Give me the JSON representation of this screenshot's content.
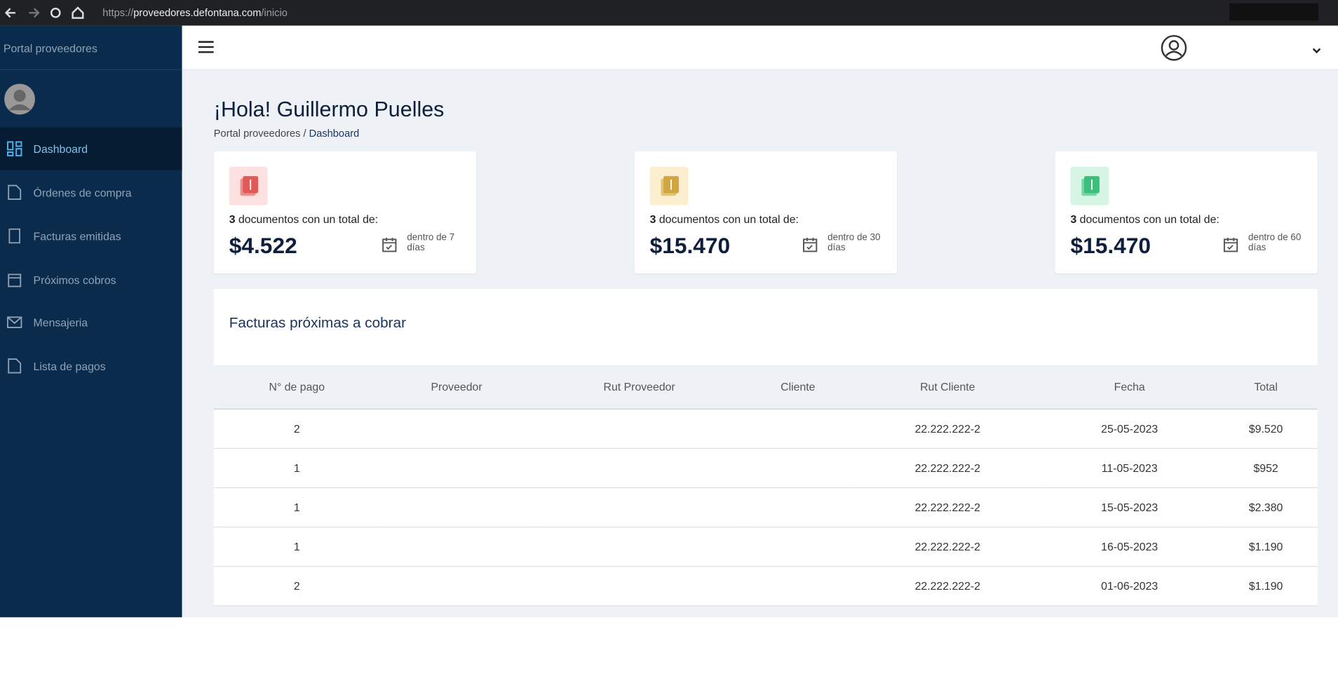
{
  "browser": {
    "url_prefix": "https://",
    "url_host": "proveedores.defontana.com",
    "url_path": "/inicio"
  },
  "sidebar": {
    "brand": "Portal proveedores",
    "menu": [
      "Dashboard",
      "Órdenes de compra",
      "Facturas emitidas",
      "Próximos cobros",
      "Mensajeria",
      "Lista de pagos"
    ]
  },
  "greeting": "¡Hola! Guillermo Puelles",
  "breadcrumb": {
    "root": "Portal proveedores",
    "separator": "/",
    "current": "Dashboard"
  },
  "cards": [
    {
      "count": "3",
      "text": "documentos con un total de:",
      "amount": "$4.522",
      "due": "dentro de 7 días"
    },
    {
      "count": "3",
      "text": "documentos con un total de:",
      "amount": "$15.470",
      "due": "dentro de 30 días"
    },
    {
      "count": "3",
      "text": "documentos con un total de:",
      "amount": "$15.470",
      "due": "dentro de 60 días"
    }
  ],
  "table": {
    "title": "Facturas próximas a cobrar",
    "columns": [
      "N° de pago",
      "Proveedor",
      "Rut Proveedor",
      "Cliente",
      "Rut Cliente",
      "Fecha",
      "Total"
    ],
    "rows": [
      [
        "2",
        "22.222.222-2",
        "25-05-2023",
        "$9.520"
      ],
      [
        "1",
        "22.222.222-2",
        "11-05-2023",
        "$952"
      ],
      [
        "1",
        "22.222.222-2",
        "15-05-2023",
        "$2.380"
      ],
      [
        "1",
        "22.222.222-2",
        "16-05-2023",
        "$1.190"
      ],
      [
        "2",
        "22.222.222-2",
        "01-06-2023",
        "$1.190"
      ]
    ]
  }
}
